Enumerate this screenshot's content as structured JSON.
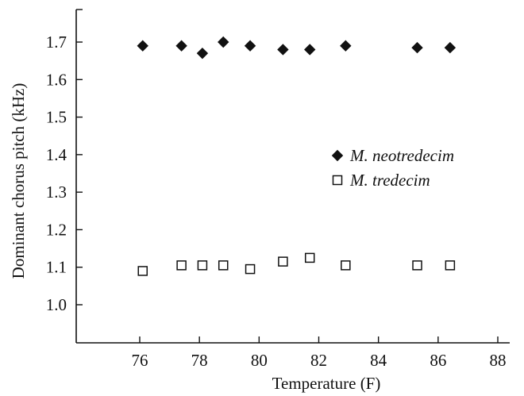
{
  "chart_data": {
    "type": "scatter",
    "title": "",
    "xlabel": "Temperature (F)",
    "ylabel": "Dominant chorus pitch (kHz)",
    "xlim": [
      74,
      88
    ],
    "ylim": [
      0.9,
      1.8
    ],
    "xticks": [
      76,
      78,
      80,
      82,
      84,
      86,
      88
    ],
    "yticks": [
      1.0,
      1.1,
      1.2,
      1.3,
      1.4,
      1.5,
      1.6,
      1.7
    ],
    "grid": false,
    "legend_position": "center-right",
    "series": [
      {
        "name": "M. neotredecim",
        "marker": "filled-diamond",
        "color": "#111111",
        "x": [
          76.1,
          77.4,
          78.1,
          78.8,
          79.7,
          80.8,
          81.7,
          82.9,
          85.3,
          86.4
        ],
        "y": [
          1.69,
          1.69,
          1.67,
          1.7,
          1.69,
          1.68,
          1.68,
          1.69,
          1.685,
          1.685
        ]
      },
      {
        "name": "M. tredecim",
        "marker": "open-square",
        "color": "#111111",
        "x": [
          76.1,
          77.4,
          78.1,
          78.8,
          79.7,
          80.8,
          81.7,
          82.9,
          85.3,
          86.4
        ],
        "y": [
          1.09,
          1.105,
          1.105,
          1.105,
          1.095,
          1.115,
          1.125,
          1.105,
          1.105,
          1.105
        ]
      }
    ]
  }
}
